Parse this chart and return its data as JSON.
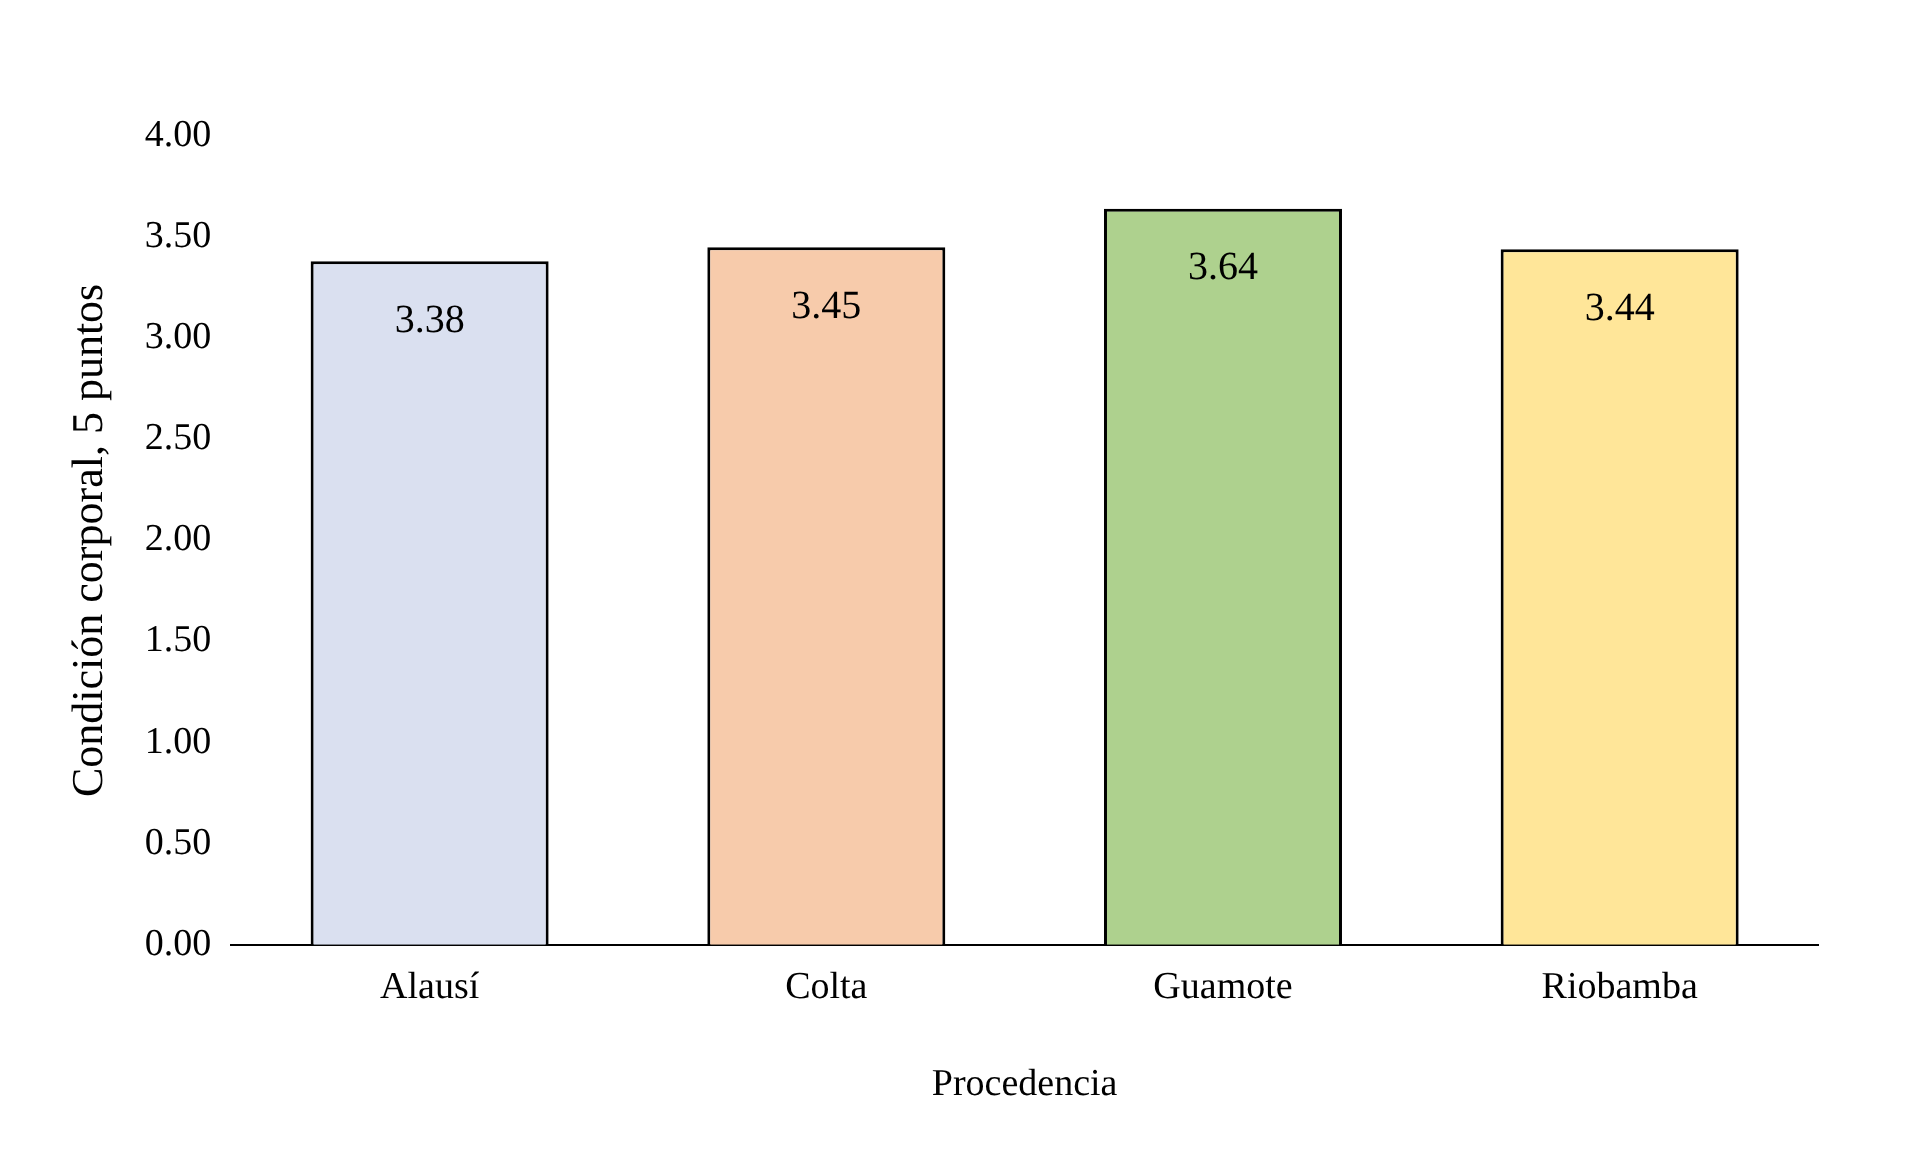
{
  "chart_data": {
    "type": "bar",
    "xlabel": "Procedencia",
    "ylabel": "Condición corporal, 5 puntos",
    "categories": [
      "Alausí",
      "Colta",
      "Guamote",
      "Riobamba"
    ],
    "values": [
      3.38,
      3.45,
      3.64,
      3.44
    ],
    "colors": [
      "#dae0f0",
      "#f7cbab",
      "#aed18e",
      "#ffe699"
    ],
    "ylim": [
      0,
      4
    ],
    "yticks": [
      {
        "value": 0,
        "label": "0.00"
      },
      {
        "value": 0.5,
        "label": "0.50"
      },
      {
        "value": 1,
        "label": "1.00"
      },
      {
        "value": 1.5,
        "label": "1.50"
      },
      {
        "value": 2,
        "label": "2.00"
      },
      {
        "value": 2.5,
        "label": "2.50"
      },
      {
        "value": 3,
        "label": "3.00"
      },
      {
        "value": 3.5,
        "label": "3.50"
      },
      {
        "value": 4,
        "label": "4.00"
      }
    ],
    "data_labels": true,
    "grid": false,
    "legend": false
  }
}
